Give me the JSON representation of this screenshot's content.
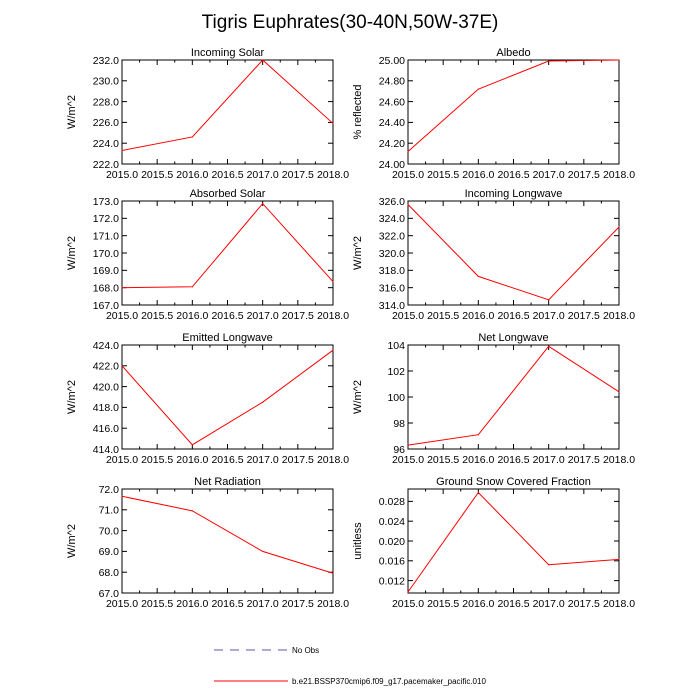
{
  "title": "Tigris Euphrates(30-40N,50W-37E)",
  "legend": {
    "obs_label": "No Obs",
    "obs_color": "#5a5aa0",
    "model_label": "b.e21.BSSP370cmip6.f09_g17.pacemaker_pacific.010",
    "model_color": "#ff0000"
  },
  "chart_data": [
    {
      "type": "line",
      "title": "Incoming Solar",
      "ylabel": "W/m^2",
      "x": [
        2015,
        2016,
        2017,
        2018
      ],
      "values": [
        223.3,
        224.6,
        232.0,
        225.9
      ],
      "xlim": [
        2015,
        2018
      ],
      "ylim": [
        222,
        232
      ],
      "xticks": [
        "2015.0",
        "2015.5",
        "2016.0",
        "2016.5",
        "2017.0",
        "2017.5",
        "2018.0"
      ],
      "yticks": [
        "222.0",
        "224.0",
        "226.0",
        "228.0",
        "230.0",
        "232.0"
      ]
    },
    {
      "type": "line",
      "title": "Albedo",
      "ylabel": "% reflected",
      "x": [
        2015,
        2016,
        2017,
        2018
      ],
      "values": [
        24.12,
        24.72,
        24.99,
        25.0
      ],
      "xlim": [
        2015,
        2018
      ],
      "ylim": [
        24.0,
        25.0
      ],
      "xticks": [
        "2015.0",
        "2015.5",
        "2016.0",
        "2016.5",
        "2017.0",
        "2017.5",
        "2018.0"
      ],
      "yticks": [
        "24.00",
        "24.20",
        "24.40",
        "24.60",
        "24.80",
        "25.00"
      ]
    },
    {
      "type": "line",
      "title": "Absorbed Solar",
      "ylabel": "W/m^2",
      "x": [
        2015,
        2016,
        2017,
        2018
      ],
      "values": [
        168.0,
        168.05,
        172.85,
        168.35
      ],
      "xlim": [
        2015,
        2018
      ],
      "ylim": [
        167,
        173
      ],
      "xticks": [
        "2015.0",
        "2015.5",
        "2016.0",
        "2016.5",
        "2017.0",
        "2017.5",
        "2018.0"
      ],
      "yticks": [
        "167.0",
        "168.0",
        "169.0",
        "170.0",
        "171.0",
        "172.0",
        "173.0"
      ]
    },
    {
      "type": "line",
      "title": "Incoming Longwave",
      "ylabel": "W/m^2",
      "x": [
        2015,
        2016,
        2017,
        2018
      ],
      "values": [
        325.6,
        317.3,
        314.6,
        323.0
      ],
      "xlim": [
        2015,
        2018
      ],
      "ylim": [
        314,
        326
      ],
      "xticks": [
        "2015.0",
        "2015.5",
        "2016.0",
        "2016.5",
        "2017.0",
        "2017.5",
        "2018.0"
      ],
      "yticks": [
        "314.0",
        "316.0",
        "318.0",
        "320.0",
        "322.0",
        "324.0",
        "326.0"
      ]
    },
    {
      "type": "line",
      "title": "Emitted Longwave",
      "ylabel": "W/m^2",
      "x": [
        2015,
        2016,
        2017,
        2018
      ],
      "values": [
        422.0,
        414.4,
        418.5,
        423.5
      ],
      "xlim": [
        2015,
        2018
      ],
      "ylim": [
        414,
        424
      ],
      "xticks": [
        "2015.0",
        "2015.5",
        "2016.0",
        "2016.5",
        "2017.0",
        "2017.5",
        "2018.0"
      ],
      "yticks": [
        "414.0",
        "416.0",
        "418.0",
        "420.0",
        "422.0",
        "424.0"
      ]
    },
    {
      "type": "line",
      "title": "Net Longwave",
      "ylabel": "W/m^2",
      "x": [
        2015,
        2016,
        2017,
        2018
      ],
      "values": [
        96.3,
        97.1,
        103.9,
        100.4
      ],
      "xlim": [
        2015,
        2018
      ],
      "ylim": [
        96,
        104
      ],
      "xticks": [
        "2015.0",
        "2015.5",
        "2016.0",
        "2016.5",
        "2017.0",
        "2017.5",
        "2018.0"
      ],
      "yticks": [
        "96",
        "98",
        "100",
        "102",
        "104"
      ]
    },
    {
      "type": "line",
      "title": "Net Radiation",
      "ylabel": "W/m^2",
      "x": [
        2015,
        2016,
        2017,
        2018
      ],
      "values": [
        71.65,
        70.95,
        69.0,
        67.95
      ],
      "xlim": [
        2015,
        2018
      ],
      "ylim": [
        67,
        72
      ],
      "xticks": [
        "2015.0",
        "2015.5",
        "2016.0",
        "2016.5",
        "2017.0",
        "2017.5",
        "2018.0"
      ],
      "yticks": [
        "67.0",
        "68.0",
        "69.0",
        "70.0",
        "71.0",
        "72.0"
      ]
    },
    {
      "type": "line",
      "title": "Ground Snow Covered Fraction",
      "ylabel": "unitless",
      "x": [
        2015,
        2016,
        2017,
        2018
      ],
      "values": [
        0.0097,
        0.0298,
        0.0152,
        0.0163
      ],
      "xlim": [
        2015,
        2018
      ],
      "ylim": [
        0.0095,
        0.0305
      ],
      "ytickvals": [
        0.012,
        0.016,
        0.02,
        0.024,
        0.028
      ],
      "xticks": [
        "2015.0",
        "2015.5",
        "2016.0",
        "2016.5",
        "2017.0",
        "2017.5",
        "2018.0"
      ],
      "yticks": [
        "0.012",
        "0.016",
        "0.020",
        "0.024",
        "0.028"
      ]
    }
  ]
}
